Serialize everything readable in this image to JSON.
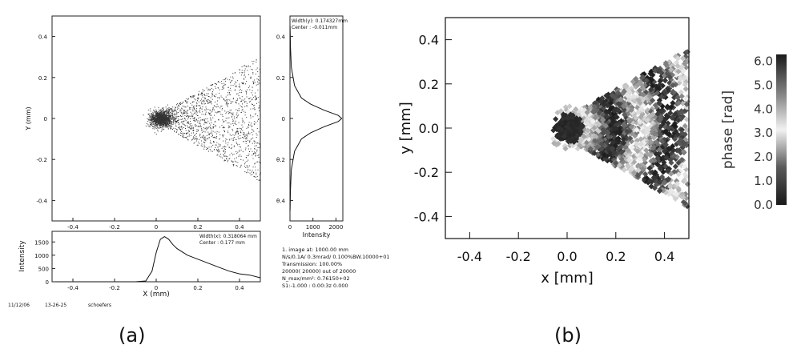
{
  "captions": {
    "a": "(a)",
    "b": "(b)"
  },
  "colors": {
    "ink": "#111111",
    "axis": "#222222"
  },
  "panel_a": {
    "footer": {
      "date": "11/12/06",
      "time": "13-26-25",
      "user": "schoefers"
    },
    "info": [
      "1. image at:  1000.00 mm",
      "N/s/0.1A/  0.3mrad/  0.100%BW.10000+01",
      "Transmission:   100.00%",
      "20000(   20000) out of   20000",
      "N_max/mm²:  0.76150+02",
      "S1:-1.000 : 0.00:3z  0.000"
    ],
    "right_stats": {
      "width": "Width(y): 0.174327mm",
      "center": "Center : -0.011mm"
    },
    "bottom_stats": {
      "width": "Width(x):  0.318064 mm",
      "center": "Center :  0.177 mm"
    }
  },
  "chart_data": [
    {
      "id": "a-scatter",
      "type": "scatter",
      "title": "",
      "xlabel": "",
      "ylabel": "Y (mm)",
      "xlim": [
        -0.5,
        0.5
      ],
      "ylim": [
        -0.5,
        0.5
      ],
      "xticks": [
        "-0.4",
        "-0.2",
        "0",
        "0.2",
        "0.4"
      ],
      "yticks": [
        "-0.4",
        "-0.2",
        "0",
        "0.2",
        "0.4"
      ],
      "description_points": "20000 rays; dense core near (0.02, 0.0) opening into a cone toward x = 0.5",
      "core": {
        "x": 0.02,
        "y": 0.0
      },
      "grid": false
    },
    {
      "id": "a-profile-y",
      "type": "line",
      "xlabel": "Intensity",
      "ylabel": "",
      "xlim": [
        0,
        2300
      ],
      "ylim": [
        -0.5,
        0.5
      ],
      "xticks": [
        "0",
        "1000",
        "2000"
      ],
      "yticks": [
        "θ.4",
        "θ.2",
        "0",
        "0.2",
        "0.4"
      ],
      "x": [
        5,
        20,
        60,
        200,
        500,
        900,
        1500,
        2100,
        2250,
        2100,
        1500,
        900,
        500,
        200,
        60,
        20,
        5
      ],
      "y": [
        0.45,
        0.35,
        0.25,
        0.16,
        0.1,
        0.07,
        0.04,
        0.015,
        0.0,
        -0.015,
        -0.04,
        -0.07,
        -0.1,
        -0.16,
        -0.25,
        -0.35,
        -0.45
      ]
    },
    {
      "id": "a-profile-x",
      "type": "line",
      "xlabel": "X (mm)",
      "ylabel": "Intensity",
      "xlim": [
        -0.5,
        0.5
      ],
      "ylim": [
        0,
        1900
      ],
      "xticks": [
        "-0.4",
        "-0.2",
        "0",
        "0.2",
        "0.4"
      ],
      "yticks": [
        "0",
        "500",
        "1000",
        "1500"
      ],
      "x": [
        -0.5,
        -0.1,
        -0.05,
        -0.02,
        0.0,
        0.02,
        0.04,
        0.06,
        0.08,
        0.1,
        0.15,
        0.2,
        0.25,
        0.3,
        0.35,
        0.4,
        0.45,
        0.5
      ],
      "y": [
        0,
        0,
        30,
        400,
        1100,
        1600,
        1700,
        1600,
        1400,
        1250,
        1000,
        850,
        700,
        550,
        400,
        300,
        250,
        150
      ]
    },
    {
      "id": "b-phase",
      "type": "scatter",
      "title": "",
      "xlabel": "x [mm]",
      "ylabel": "y [mm]",
      "xlim": [
        -0.5,
        0.5
      ],
      "ylim": [
        -0.5,
        0.5
      ],
      "xticks": [
        "-0.4",
        "-0.2",
        "0.0",
        "0.2",
        "0.4"
      ],
      "yticks": [
        "-0.4",
        "-0.2",
        "0.0",
        "0.2",
        "0.4"
      ],
      "description_points": "diamond markers colored by phase, cone from (0, 0) widening to y = ±0.35 at x = 0.5",
      "colorbar": {
        "label": "phase [rad]",
        "range": [
          0,
          6.28
        ],
        "ticks": [
          "0.0",
          "1.0",
          "2.0",
          "3.0",
          "4.0",
          "5.0",
          "6.0"
        ],
        "colormap": "greyscale cyclic (dark at 0 and 2π)"
      }
    }
  ]
}
